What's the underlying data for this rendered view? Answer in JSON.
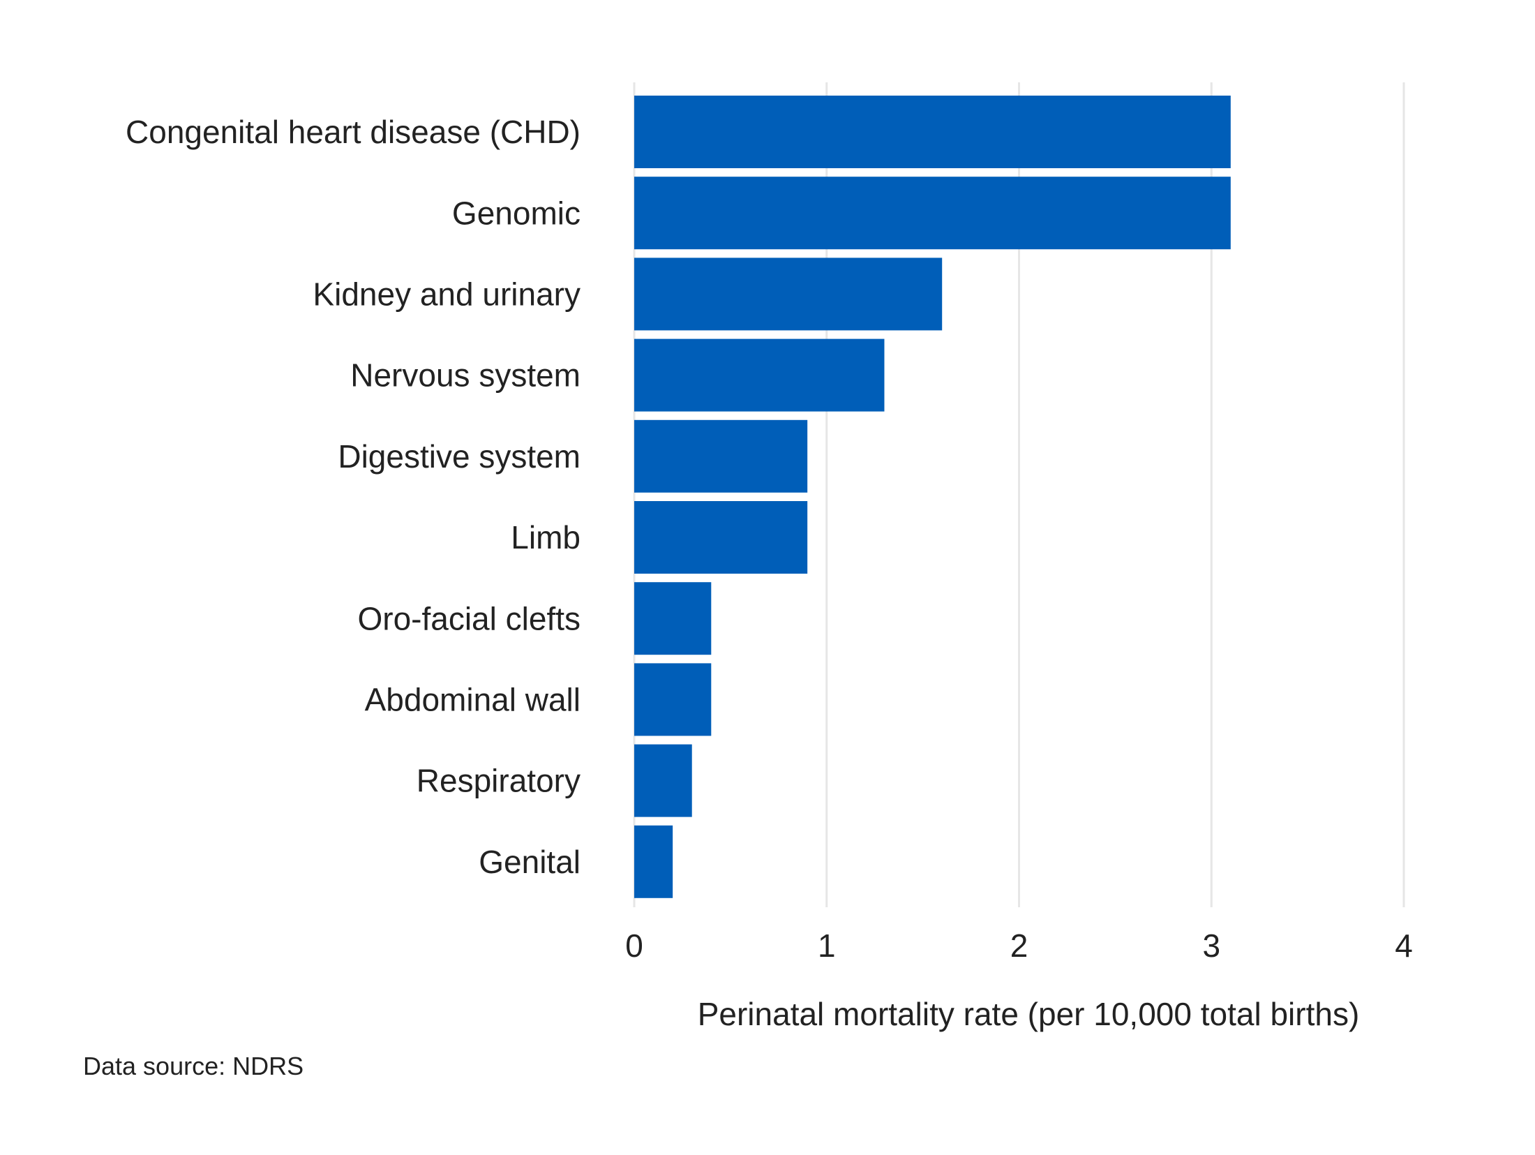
{
  "chart_data": {
    "type": "bar",
    "orientation": "horizontal",
    "categories": [
      "Congenital heart disease (CHD)",
      "Genomic",
      "Kidney and urinary",
      "Nervous system",
      "Digestive system",
      "Limb",
      "Oro-facial clefts",
      "Abdominal wall",
      "Respiratory",
      "Genital"
    ],
    "values": [
      3.1,
      3.1,
      1.6,
      1.3,
      0.9,
      0.9,
      0.4,
      0.4,
      0.3,
      0.2
    ],
    "xlabel": "Perinatal mortality rate (per 10,000 total births)",
    "ylabel": "",
    "xlim": [
      0,
      4
    ],
    "xticks": [
      "0",
      "1",
      "2",
      "3",
      "4"
    ],
    "grid": "vertical",
    "bar_color": "#005EB8",
    "source_note": "Data source: NDRS"
  }
}
